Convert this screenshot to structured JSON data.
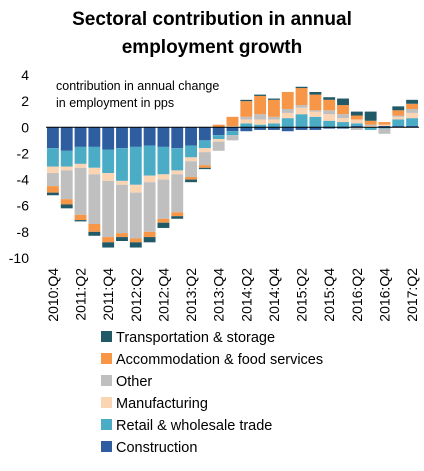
{
  "chart_data": {
    "type": "bar",
    "stacked": true,
    "title_lines": [
      "Sectoral contribution in annual",
      "employment growth"
    ],
    "annotation_lines": [
      "contribution in annual change",
      "in employment in pps"
    ],
    "ylim": [
      -10,
      4
    ],
    "yticks": [
      4,
      2,
      0,
      -2,
      -4,
      -6,
      -8,
      -10
    ],
    "grid": false,
    "legend_position": "bottom",
    "x_tick_labels": [
      "2010:Q4",
      "2011:Q2",
      "2011:Q4",
      "2012:Q2",
      "2012:Q4",
      "2013:Q2",
      "2013:Q4",
      "2014:Q2",
      "2014:Q4",
      "2015:Q2",
      "2015:Q4",
      "2016:Q2",
      "2016:Q4",
      "2017:Q2"
    ],
    "categories": [
      "2010:Q4",
      "2011:Q1",
      "2011:Q2",
      "2011:Q3",
      "2011:Q4",
      "2012:Q1",
      "2012:Q2",
      "2012:Q3",
      "2012:Q4",
      "2013:Q1",
      "2013:Q2",
      "2013:Q3",
      "2013:Q4",
      "2014:Q1",
      "2014:Q2",
      "2014:Q3",
      "2014:Q4",
      "2015:Q1",
      "2015:Q2",
      "2015:Q3",
      "2015:Q4",
      "2016:Q1",
      "2016:Q2",
      "2016:Q3",
      "2016:Q4",
      "2017:Q1",
      "2017:Q2"
    ],
    "series": [
      {
        "name": "Construction",
        "color": "#2e5ea0",
        "values": [
          -1.6,
          -1.8,
          -1.5,
          -1.5,
          -1.7,
          -1.6,
          -1.5,
          -1.4,
          -1.5,
          -1.6,
          -1.4,
          -1.0,
          -0.6,
          -0.3,
          -0.3,
          -0.2,
          -0.2,
          -0.3,
          -0.2,
          -0.2,
          -0.1,
          -0.1,
          0.1,
          0.0,
          0.1,
          0.1,
          0.1
        ]
      },
      {
        "name": "Retail & wholesale trade",
        "color": "#4bacc6",
        "values": [
          -1.4,
          -1.2,
          -1.3,
          -1.6,
          -1.8,
          -2.5,
          -2.9,
          -2.3,
          -2.1,
          -1.7,
          -0.9,
          -0.6,
          -0.3,
          -0.3,
          0.3,
          0.2,
          0.3,
          0.7,
          1.0,
          0.8,
          0.5,
          0.4,
          0.2,
          -0.2,
          -0.1,
          0.5,
          0.6
        ]
      },
      {
        "name": "Manufacturing",
        "color": "#fbd4b4",
        "values": [
          -0.5,
          -0.3,
          -0.3,
          -0.5,
          -0.6,
          -0.3,
          -0.6,
          -0.5,
          -0.4,
          -0.3,
          -0.3,
          -0.3,
          -0.2,
          0.1,
          0.3,
          0.4,
          0.3,
          0.4,
          0.5,
          0.4,
          0.5,
          0.3,
          0.3,
          0.1,
          0.1,
          0.2,
          0.4
        ]
      },
      {
        "name": "Other",
        "color": "#bfbfbf",
        "values": [
          -1.0,
          -2.2,
          -3.6,
          -3.8,
          -4.3,
          -3.7,
          -3.5,
          -3.8,
          -3.0,
          -2.9,
          -1.2,
          -1.0,
          -0.7,
          -0.4,
          0.2,
          0.4,
          0.2,
          0.3,
          0.2,
          0.1,
          0.3,
          0.3,
          -0.2,
          0.1,
          -0.4,
          0.1,
          0.3
        ]
      },
      {
        "name": "Accommodation & food services",
        "color": "#f79646",
        "values": [
          -0.5,
          -0.4,
          -0.4,
          -0.6,
          -0.4,
          -0.3,
          -0.3,
          -0.4,
          -0.3,
          -0.3,
          -0.2,
          -0.2,
          0.2,
          0.7,
          1.2,
          1.4,
          1.3,
          1.3,
          1.3,
          1.2,
          0.8,
          0.7,
          0.3,
          0.3,
          0.2,
          0.4,
          0.4
        ]
      },
      {
        "name": "Transportation & storage",
        "color": "#215967",
        "values": [
          -0.2,
          -0.3,
          -0.1,
          -0.3,
          -0.4,
          -0.3,
          -0.4,
          -0.4,
          -0.4,
          -0.2,
          -0.2,
          -0.1,
          0.0,
          0.0,
          0.1,
          0.1,
          0.1,
          0.0,
          0.1,
          0.2,
          0.2,
          0.5,
          0.3,
          0.7,
          0.0,
          0.3,
          0.3
        ]
      }
    ],
    "legend_order": [
      "Transportation & storage",
      "Accommodation & food services",
      "Other",
      "Manufacturing",
      "Retail & wholesale trade",
      "Construction"
    ]
  }
}
